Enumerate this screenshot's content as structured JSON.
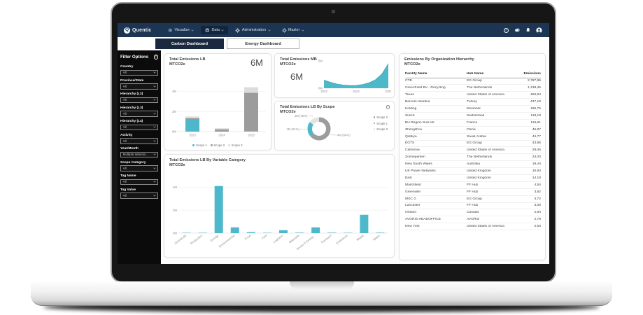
{
  "colors": {
    "navy": "#1c3553",
    "active_tab": "#1b2940",
    "teal": "#4eb8cb",
    "scope1": "#4eb8cb",
    "scope2": "#9c9c9c",
    "scope3": "#e0e0e0",
    "sidebar": "#0b0b0b"
  },
  "navbar": {
    "brand": "Quentic",
    "brand_initial": "Q",
    "items": [
      {
        "label": "Visualize",
        "icon": "visualize-icon",
        "active": false
      },
      {
        "label": "Data",
        "icon": "data-icon",
        "active": true
      },
      {
        "label": "Administration",
        "icon": "administration-icon",
        "active": false
      },
      {
        "label": "Master",
        "icon": "master-icon",
        "active": false
      }
    ],
    "actions": [
      {
        "name": "help",
        "icon": "help-icon"
      },
      {
        "name": "announcements",
        "icon": "announcement-icon"
      },
      {
        "name": "notifications",
        "icon": "bell-icon"
      },
      {
        "name": "account",
        "icon": "account-icon"
      }
    ]
  },
  "tabs": [
    {
      "label": "Carbon Dashboard",
      "active": true
    },
    {
      "label": "Energy Dashboard",
      "active": false
    }
  ],
  "filters": {
    "title": "Filter Options",
    "help_glyph": "?",
    "fields": [
      {
        "label": "Country",
        "value": "All"
      },
      {
        "label": "Province/State",
        "value": "All"
      },
      {
        "label": "Hierarchy (L2)",
        "value": "All"
      },
      {
        "label": "Hierarchy (L3)",
        "value": "All"
      },
      {
        "label": "Hierarchy (L4)",
        "value": "All"
      },
      {
        "label": "Activity",
        "value": "All"
      },
      {
        "label": "Year/Month",
        "value": "Multiple selectio..."
      },
      {
        "label": "Scope Category",
        "value": "All"
      },
      {
        "label": "Tag Name",
        "value": "All"
      },
      {
        "label": "Tag Value",
        "value": "All"
      }
    ]
  },
  "cards": {
    "emissions_lb": {
      "title": "Total Emissions LB",
      "subtitle": "MTCO2e",
      "big_value": "6M"
    },
    "emissions_mb": {
      "title": "Total Emissions MB",
      "subtitle": "MTCO2e",
      "big_value": "6M"
    },
    "by_scope": {
      "title": "Total Emissions LB By Scope",
      "subtitle": "MTCO2e",
      "info_glyph": "i"
    },
    "by_category": {
      "title": "Total Emissions LB By Variable Category",
      "subtitle": "MTCO2e"
    },
    "org_table": {
      "title": "Emissions By Organization Hierarchy",
      "subtitle": "MTCO2e"
    }
  },
  "chart_data": [
    {
      "id": "total-emissions-lb-by-year",
      "type": "bar",
      "stacked": true,
      "title": "Total Emissions LB",
      "ylabel": "MTCO2e",
      "categories": [
        "2023",
        "2024",
        "2025"
      ],
      "series": [
        {
          "name": "Scope 1",
          "color": "#4eb8cb",
          "values": [
            1.25,
            0.03,
            0.05
          ]
        },
        {
          "name": "Scope 2",
          "color": "#9c9c9c",
          "values": [
            0.08,
            0.2,
            3.8
          ]
        },
        {
          "name": "Scope 3",
          "color": "#dcdcdc",
          "values": [
            0.17,
            0.1,
            0.55
          ]
        }
      ],
      "ylim": [
        0,
        5
      ],
      "yticks": [
        {
          "label": "0M",
          "value": 0
        },
        {
          "label": "2M",
          "value": 2
        },
        {
          "label": "4M",
          "value": 4
        }
      ],
      "grid": true,
      "legend_position": "bottom"
    },
    {
      "id": "total-emissions-mb-trend",
      "type": "area",
      "title": "Total Emissions MB",
      "ylabel": "MTCO2e",
      "color": "#4eb8cb",
      "x": [
        2023,
        2023.2,
        2023.4,
        2023.6,
        2023.8,
        2024,
        2024.2,
        2024.4,
        2024.6,
        2024.8,
        2025
      ],
      "values": [
        1.5,
        1.1,
        0.78,
        0.58,
        0.5,
        0.52,
        0.68,
        1.0,
        1.55,
        2.6,
        4.5
      ],
      "ylim": [
        0,
        5
      ],
      "yticks": [
        {
          "label": "5M",
          "value": 5
        },
        {
          "label": "0M",
          "value": 0
        }
      ],
      "xticks": [
        "2023",
        "2024",
        "2025"
      ],
      "grid": false
    },
    {
      "id": "total-emissions-lb-by-scope",
      "type": "pie",
      "donut": true,
      "title": "Total Emissions LB By Scope",
      "ylabel": "MTCO2e",
      "slices": [
        {
          "name": "Scope 2",
          "value": 4,
          "percent": 64,
          "label": "4M (64%)",
          "color": "#9c9c9c"
        },
        {
          "name": "Scope 1",
          "value": 1,
          "percent": 21,
          "label": "1M (21%)",
          "color": "#4eb8cb"
        },
        {
          "name": "Scope 3",
          "value": 1,
          "percent": 15,
          "label": "1M (15%)",
          "color": "#e3e3e3"
        }
      ],
      "legend": [
        "Scope 2",
        "Scope 1",
        "Scope 3"
      ],
      "legend_position": "right"
    },
    {
      "id": "total-emissions-lb-by-variable-category",
      "type": "bar",
      "stacked": false,
      "title": "Total Emissions LB By Variable Category",
      "ylabel": "MTCO2e",
      "color": "#4eb8cb",
      "categories": [
        "Chemicals",
        "Production",
        "Energy",
        "Environmental",
        "Food",
        "Fuel",
        "Logistics",
        "Materials",
        "Scope 3 Emissi...",
        "Transport",
        "Emissions",
        "Waste",
        "Water"
      ],
      "values": [
        0.03,
        0.03,
        4.1,
        0.5,
        0.08,
        0.03,
        0.25,
        0.04,
        0.5,
        0.04,
        0.03,
        1.6,
        0.04
      ],
      "ylim": [
        0,
        5
      ],
      "yticks": [
        {
          "label": "0M",
          "value": 0
        },
        {
          "label": "2M",
          "value": 2
        },
        {
          "label": "4M",
          "value": 4
        }
      ],
      "grid": true,
      "rotate_labels": true
    }
  ],
  "org_table": {
    "columns": [
      "Facility Name",
      "Hub Name",
      "Emissions"
    ],
    "rows": [
      [
        "CTB",
        "EG Group",
        "2,787,86"
      ],
      [
        "GreenField BV - Recycling",
        "The Netherlands",
        "1,138,45"
      ],
      [
        "Texas",
        "United States of America",
        "456,94"
      ],
      [
        "Barceló Istanbul",
        "Turkey",
        "437,18"
      ],
      [
        "Kolding",
        "Denmark",
        "186,75"
      ],
      [
        "Zurich",
        "Switzerland",
        "118,18"
      ],
      [
        "BU Région Sud est",
        "France",
        "116,91"
      ],
      [
        "Zhengzhou",
        "China",
        "45,87"
      ],
      [
        "Qiddiya",
        "Saudi Arabia",
        "44,77"
      ],
      [
        "EGTS",
        "EG Group",
        "43,95"
      ],
      [
        "California",
        "United States of America",
        "28,06"
      ],
      [
        "Zonneparken",
        "The Netherlands",
        "23,03"
      ],
      [
        "New South Wales",
        "Australia",
        "19,44"
      ],
      [
        "UK Power Networks",
        "United Kingdom",
        "16,93"
      ],
      [
        "East",
        "United Kingdom",
        "14,18"
      ],
      [
        "Marshfield",
        "FF Hub",
        "4,54"
      ],
      [
        "Greenville",
        "FF Hub",
        "3,82"
      ],
      [
        "MSC G",
        "EG Group",
        "3,72"
      ],
      [
        "Lancaster",
        "FF Hub",
        "3,06"
      ],
      [
        "Ontario",
        "Canada",
        "2,84"
      ],
      [
        "AVORIS HEADOFFICE",
        "AVORIS",
        "2,78"
      ],
      [
        "New York",
        "United States of America",
        "2,63"
      ]
    ]
  }
}
